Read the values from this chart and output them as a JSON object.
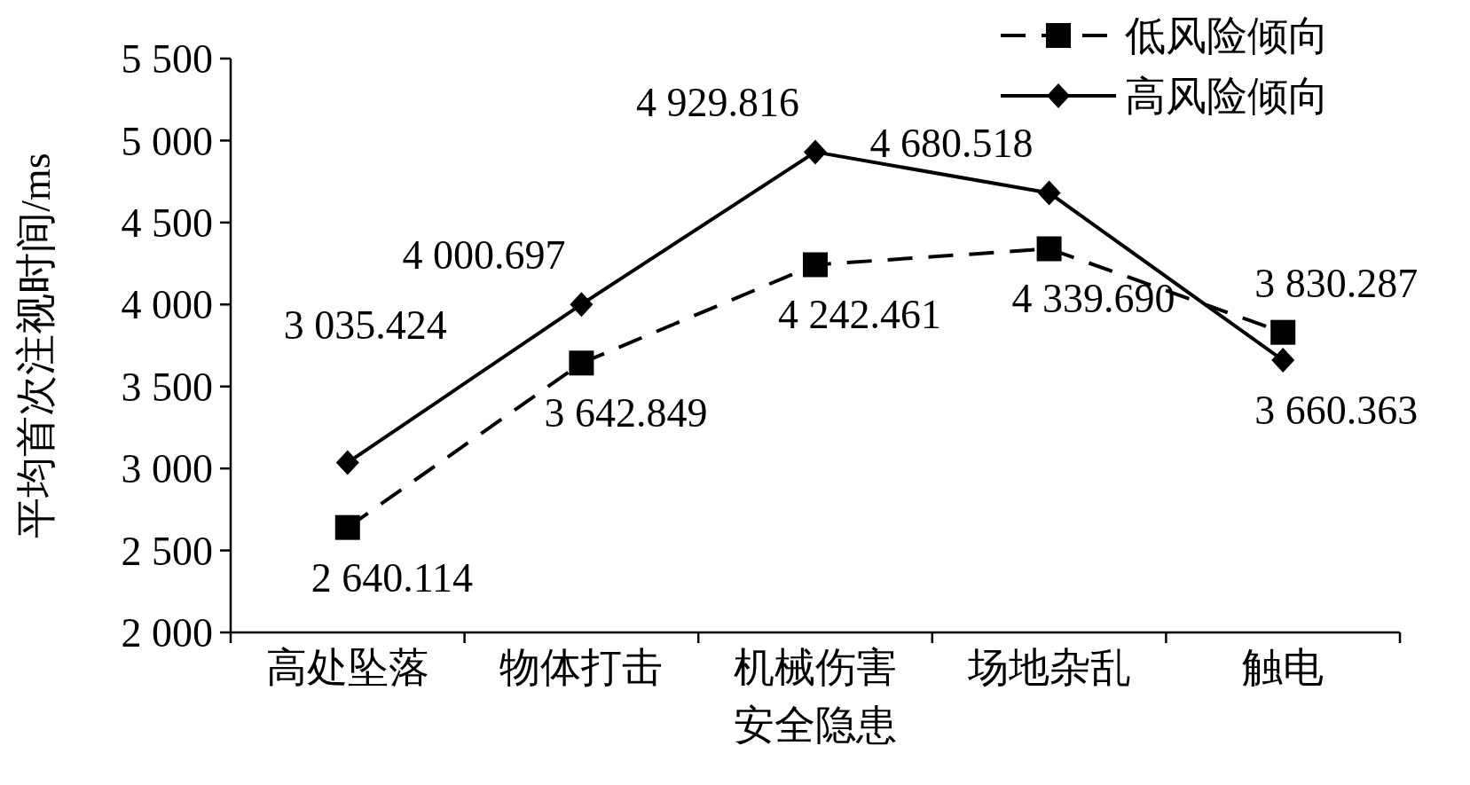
{
  "chart_data": {
    "type": "line",
    "xlabel": "安全隐患",
    "ylabel": "平均首次注视时间/ms",
    "categories": [
      "高处坠落",
      "物体打击",
      "机械伤害",
      "场地杂乱",
      "触电"
    ],
    "series": [
      {
        "name": "低风险倾向",
        "color": "#000000",
        "line_style": "dashed",
        "marker": "square",
        "values": [
          2640.114,
          3642.849,
          4242.461,
          4339.69,
          3830.287
        ],
        "value_labels": [
          "2 640.114",
          "3 642.849",
          "4 242.461",
          "4 339.690",
          "3 830.287"
        ]
      },
      {
        "name": "高风险倾向",
        "color": "#000000",
        "line_style": "solid",
        "marker": "diamond",
        "values": [
          3035.424,
          4000.697,
          4929.816,
          4680.518,
          3660.363
        ],
        "value_labels": [
          "3 035.424",
          "4 000.697",
          "4 929.816",
          "4 680.518",
          "3 660.363"
        ]
      }
    ],
    "ylim": [
      2000,
      5500
    ],
    "yticks": [
      {
        "value": 2000,
        "label": "2 000"
      },
      {
        "value": 2500,
        "label": "2 500"
      },
      {
        "value": 3000,
        "label": "3 000"
      },
      {
        "value": 3500,
        "label": "3 500"
      },
      {
        "value": 4000,
        "label": "4 000"
      },
      {
        "value": 4500,
        "label": "4 500"
      },
      {
        "value": 5000,
        "label": "5 000"
      },
      {
        "value": 5500,
        "label": "5 500"
      }
    ],
    "grid": false,
    "legend": "top right"
  }
}
